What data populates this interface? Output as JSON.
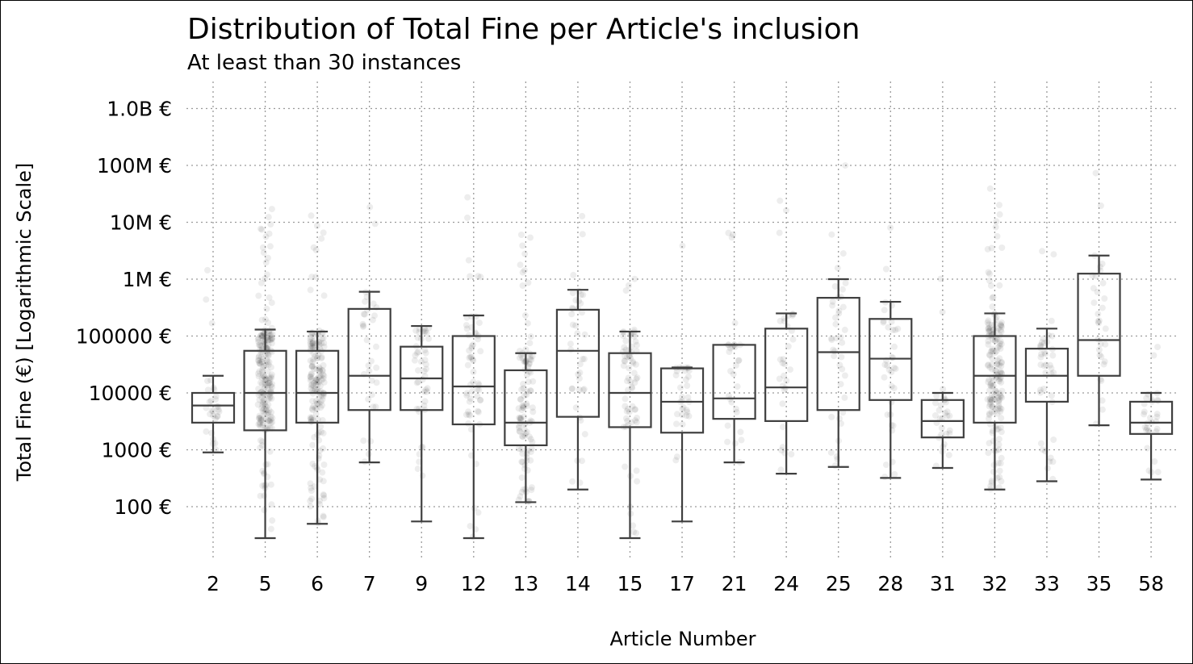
{
  "chart_data": {
    "type": "box",
    "title": "Distribution of Total Fine per Article's inclusion",
    "subtitle": "At least than 30 instances",
    "xlabel": "Article Number",
    "ylabel": "Total Fine (€) [Logarithmic Scale]",
    "y_scale": "log",
    "ylim": [
      10,
      2000000000
    ],
    "grid": true,
    "y_ticks": [
      {
        "value": 100,
        "label": "100 €"
      },
      {
        "value": 1000,
        "label": "1000 €"
      },
      {
        "value": 10000,
        "label": "10000 €"
      },
      {
        "value": 100000,
        "label": "100000 €"
      },
      {
        "value": 1000000,
        "label": "1M €"
      },
      {
        "value": 10000000,
        "label": "10M €"
      },
      {
        "value": 100000000,
        "label": "100M €"
      },
      {
        "value": 1000000000,
        "label": "1.0B €"
      }
    ],
    "categories": [
      "2",
      "5",
      "6",
      "7",
      "9",
      "12",
      "13",
      "14",
      "15",
      "17",
      "21",
      "24",
      "25",
      "28",
      "31",
      "32",
      "33",
      "35",
      "58"
    ],
    "boxes": [
      {
        "article": "2",
        "whisker_low": 900,
        "q1": 3000,
        "median": 6000,
        "q3": 10000,
        "whisker_high": 20000,
        "n_points": 30
      },
      {
        "article": "5",
        "whisker_low": 28,
        "q1": 2200,
        "median": 10000,
        "q3": 55000,
        "whisker_high": 130000,
        "n_points": 220
      },
      {
        "article": "6",
        "whisker_low": 50,
        "q1": 3000,
        "median": 10000,
        "q3": 55000,
        "whisker_high": 120000,
        "n_points": 170
      },
      {
        "article": "7",
        "whisker_low": 600,
        "q1": 5000,
        "median": 20000,
        "q3": 300000,
        "whisker_high": 600000,
        "n_points": 32
      },
      {
        "article": "9",
        "whisker_low": 55,
        "q1": 5000,
        "median": 18000,
        "q3": 65000,
        "whisker_high": 150000,
        "n_points": 45
      },
      {
        "article": "12",
        "whisker_low": 28,
        "q1": 2800,
        "median": 13000,
        "q3": 100000,
        "whisker_high": 230000,
        "n_points": 60
      },
      {
        "article": "13",
        "whisker_low": 120,
        "q1": 1200,
        "median": 3000,
        "q3": 25000,
        "whisker_high": 50000,
        "n_points": 110
      },
      {
        "article": "14",
        "whisker_low": 200,
        "q1": 3800,
        "median": 55000,
        "q3": 290000,
        "whisker_high": 650000,
        "n_points": 40
      },
      {
        "article": "15",
        "whisker_low": 28,
        "q1": 2500,
        "median": 10000,
        "q3": 50000,
        "whisker_high": 120000,
        "n_points": 70
      },
      {
        "article": "17",
        "whisker_low": 55,
        "q1": 2000,
        "median": 7000,
        "q3": 27000,
        "whisker_high": 28000,
        "n_points": 32
      },
      {
        "article": "21",
        "whisker_low": 600,
        "q1": 3500,
        "median": 8000,
        "q3": 70000,
        "whisker_high": 70000,
        "n_points": 30
      },
      {
        "article": "24",
        "whisker_low": 380,
        "q1": 3200,
        "median": 12500,
        "q3": 135000,
        "whisker_high": 250000,
        "n_points": 32
      },
      {
        "article": "25",
        "whisker_low": 500,
        "q1": 5000,
        "median": 52000,
        "q3": 470000,
        "whisker_high": 1000000,
        "n_points": 40
      },
      {
        "article": "28",
        "whisker_low": 320,
        "q1": 7500,
        "median": 40000,
        "q3": 200000,
        "whisker_high": 400000,
        "n_points": 35
      },
      {
        "article": "31",
        "whisker_low": 480,
        "q1": 1650,
        "median": 3200,
        "q3": 7500,
        "whisker_high": 10000,
        "n_points": 30
      },
      {
        "article": "32",
        "whisker_low": 200,
        "q1": 3000,
        "median": 20000,
        "q3": 100000,
        "whisker_high": 250000,
        "n_points": 180
      },
      {
        "article": "33",
        "whisker_low": 280,
        "q1": 7000,
        "median": 20000,
        "q3": 60000,
        "whisker_high": 135000,
        "n_points": 40
      },
      {
        "article": "35",
        "whisker_low": 2700,
        "q1": 20000,
        "median": 85000,
        "q3": 1250000,
        "whisker_high": 2600000,
        "n_points": 32
      },
      {
        "article": "58",
        "whisker_low": 300,
        "q1": 1900,
        "median": 3000,
        "q3": 7000,
        "whisker_high": 10000,
        "n_points": 30
      }
    ],
    "colors": {
      "box": "#3f3f3f",
      "points": "#000000",
      "grid": "#9a9a9a"
    }
  }
}
